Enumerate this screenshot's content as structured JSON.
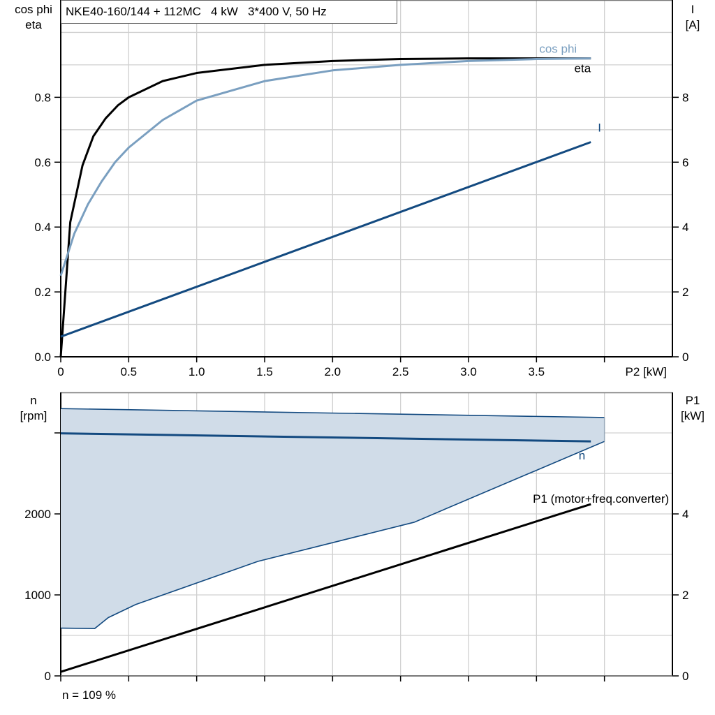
{
  "title": "NKE40-160/144 + 112MC   4 kW   3*400 V, 50 Hz",
  "footer": "n = 109 %",
  "colors": {
    "eta": "#000000",
    "cos_phi": "#7a9fc0",
    "I": "#134a80",
    "n": "#134a80",
    "band_fill": "#d0dce8",
    "P1": "#000000",
    "grid": "#d0d0d0"
  },
  "chart_data": [
    {
      "type": "line",
      "xlabel": "P2 [kW]",
      "ylabel_left": [
        "cos phi",
        "eta"
      ],
      "ylabel_right": [
        "I",
        "[A]"
      ],
      "xlim": [
        0,
        4.5
      ],
      "ylim_left": [
        0,
        1.1
      ],
      "ylim_right": [
        0,
        11
      ],
      "xticks": [
        0,
        0.5,
        1.0,
        1.5,
        2.0,
        2.5,
        3.0,
        3.5,
        4.0
      ],
      "xtick_labels": [
        "0",
        "0.5",
        "1.0",
        "1.5",
        "2.0",
        "2.5",
        "3.0",
        "3.5",
        ""
      ],
      "yticks_left": [
        0,
        0.2,
        0.4,
        0.6,
        0.8
      ],
      "ytick_labels_left": [
        "0.0",
        "0.2",
        "0.4",
        "0.6",
        "0.8"
      ],
      "yticks_right": [
        0,
        2,
        4,
        6,
        8
      ],
      "ytick_labels_right": [
        "0",
        "2",
        "4",
        "6",
        "8"
      ],
      "grid": true,
      "series": [
        {
          "name": "eta",
          "axis": "left",
          "x": [
            0,
            0.07,
            0.16,
            0.24,
            0.33,
            0.42,
            0.5,
            0.75,
            1.0,
            1.5,
            2.0,
            2.5,
            3.0,
            3.5,
            3.9
          ],
          "y": [
            0,
            0.415,
            0.59,
            0.68,
            0.735,
            0.775,
            0.8,
            0.85,
            0.875,
            0.9,
            0.912,
            0.918,
            0.92,
            0.92,
            0.92
          ]
        },
        {
          "name": "cos phi",
          "axis": "left",
          "x": [
            0,
            0.1,
            0.2,
            0.3,
            0.4,
            0.5,
            0.75,
            1.0,
            1.5,
            2.0,
            2.5,
            3.0,
            3.5,
            3.9
          ],
          "y": [
            0.25,
            0.38,
            0.47,
            0.54,
            0.6,
            0.645,
            0.73,
            0.79,
            0.85,
            0.883,
            0.9,
            0.912,
            0.918,
            0.92
          ]
        },
        {
          "name": "I",
          "axis": "right",
          "x": [
            0,
            3.9
          ],
          "y": [
            0.62,
            6.62
          ]
        }
      ]
    },
    {
      "type": "line",
      "xlabel": "",
      "ylabel_left": [
        "n",
        "[rpm]"
      ],
      "ylabel_right": [
        "P1",
        "[kW]"
      ],
      "xlim": [
        0,
        4.5
      ],
      "ylim_left": [
        0,
        3500
      ],
      "ylim_right": [
        0,
        7
      ],
      "xticks": [
        0,
        0.5,
        1.0,
        1.5,
        2.0,
        2.5,
        3.0,
        3.5,
        4.0
      ],
      "yticks_left": [
        0,
        1000,
        2000,
        3000
      ],
      "ytick_labels_left": [
        "0",
        "1000",
        "2000",
        ""
      ],
      "yticks_right": [
        0,
        2,
        4
      ],
      "ytick_labels_right": [
        "0",
        "2",
        "4"
      ],
      "grid": true,
      "band": {
        "upper_x": [
          0,
          4.0
        ],
        "upper_y": [
          3300,
          3190
        ],
        "lower_x": [
          0,
          0.25,
          0.35,
          0.55,
          1.45,
          2.6,
          4.0
        ],
        "lower_y": [
          590,
          585,
          720,
          880,
          1414,
          1897,
          2895
        ]
      },
      "series": [
        {
          "name": "n",
          "axis": "left",
          "x": [
            0,
            3.9
          ],
          "y": [
            2995,
            2895
          ]
        },
        {
          "name": "P1 (motor+freq.converter)",
          "axis": "right",
          "x": [
            0,
            3.9
          ],
          "y": [
            0.1,
            4.24
          ]
        }
      ]
    }
  ]
}
